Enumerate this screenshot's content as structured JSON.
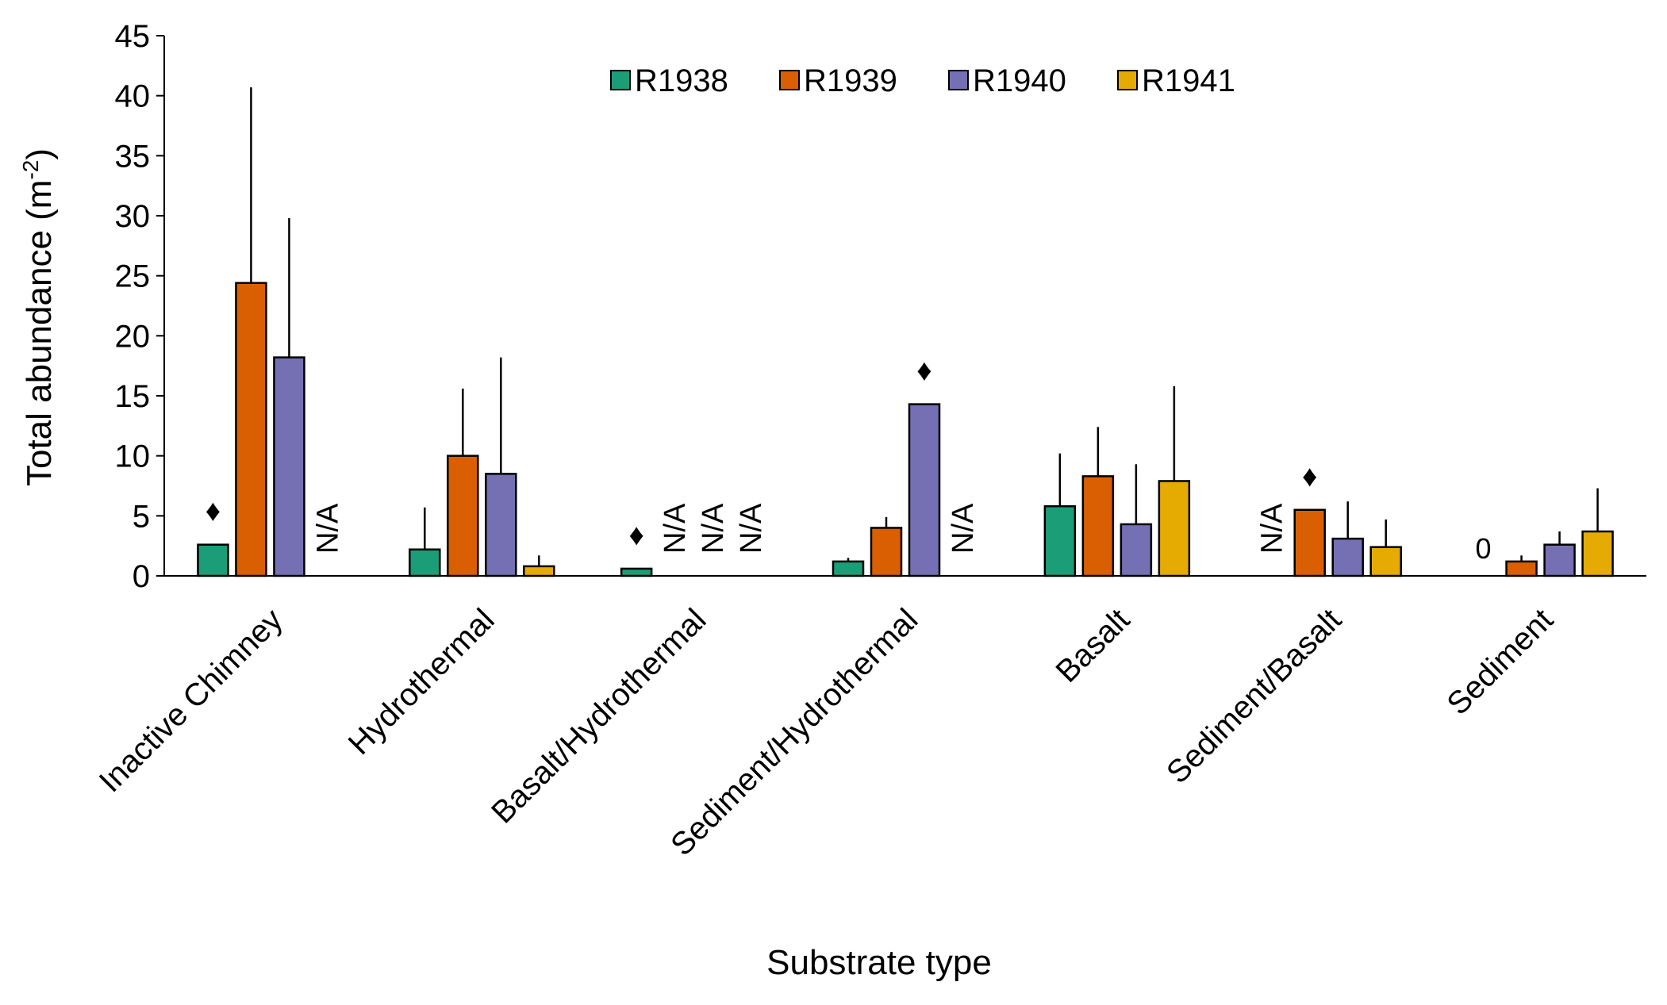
{
  "chart_data": {
    "type": "bar",
    "title": "",
    "xlabel": "Substrate type",
    "ylabel": "Total abundance (m",
    "ylabel_superscript": "-2",
    "ylabel_suffix": ")",
    "ylim": [
      0,
      45
    ],
    "yticks": [
      0,
      5,
      10,
      15,
      20,
      25,
      30,
      35,
      40,
      45
    ],
    "grid": false,
    "legend_position": "top-center",
    "categories": [
      "Inactive Chimney",
      "Hydrothermal",
      "Basalt/Hydrothermal",
      "Sediment/Hydrothermal",
      "Basalt",
      "Sediment/Basalt",
      "Sediment"
    ],
    "series": [
      {
        "name": "R1938",
        "color": "#1b9e77",
        "values": [
          2.6,
          2.2,
          0.6,
          1.2,
          5.8,
          null,
          0
        ],
        "errors": [
          null,
          3.5,
          null,
          0.3,
          4.4,
          null,
          null
        ],
        "annotations": [
          "♦",
          null,
          "♦",
          null,
          null,
          null,
          "0"
        ]
      },
      {
        "name": "R1939",
        "color": "#d95f02",
        "values": [
          24.4,
          10.0,
          null,
          4.0,
          8.3,
          5.5,
          1.2
        ],
        "errors": [
          16.3,
          5.6,
          null,
          0.9,
          4.1,
          null,
          0.5
        ],
        "annotations": [
          null,
          null,
          "N/A",
          null,
          null,
          "♦",
          null
        ]
      },
      {
        "name": "R1940",
        "color": "#7570b3",
        "values": [
          18.2,
          8.5,
          null,
          14.3,
          4.3,
          3.1,
          2.6
        ],
        "errors": [
          11.6,
          9.7,
          null,
          null,
          5.0,
          3.1,
          1.1
        ],
        "annotations": [
          null,
          null,
          "N/A",
          "♦",
          null,
          null,
          null
        ]
      },
      {
        "name": "R1941",
        "color": "#e6ab02",
        "values": [
          null,
          0.8,
          null,
          null,
          7.9,
          2.4,
          3.7
        ],
        "errors": [
          null,
          0.9,
          null,
          null,
          7.9,
          2.3,
          3.6
        ],
        "annotations": [
          "N/A",
          null,
          "N/A",
          "N/A",
          null,
          null,
          null
        ]
      }
    ],
    "extra_annotations": [
      {
        "category_index": 5,
        "series_index": 0,
        "text": "N/A"
      }
    ]
  }
}
